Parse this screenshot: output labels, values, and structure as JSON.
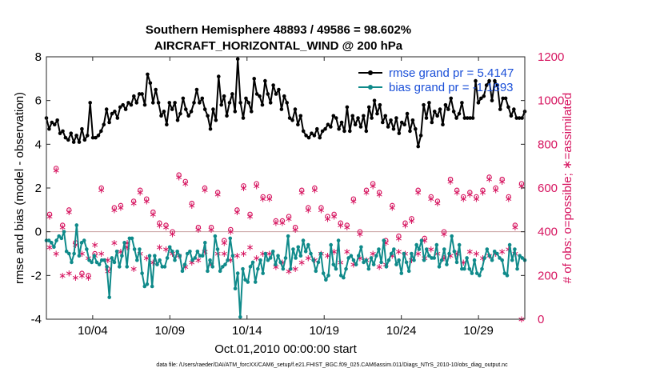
{
  "title_line1": "Southern Hemisphere 48893 / 49586 = 98.602%",
  "title_line2": "AIRCRAFT_HORIZONTAL_WIND @ 200 hPa",
  "footnote": "data file: /Users/raeder/DAI/ATM_forcXX/CAM6_setup/f.e21.FHIST_BGC.f09_025.CAM6assim.011/Diags_NTrS_2010-10/obs_diag_output.nc",
  "colors": {
    "rmse": "#000000",
    "bias": "#0f8a8a",
    "obs": "#d6145f",
    "legend_text": "#1a4fd8",
    "zero_line": "#c8a0a0"
  },
  "chart_data": {
    "type": "line",
    "xlabel": "Oct.01,2010 00:00:00 start",
    "ylabel_left": "rmse and bias (model - observation)",
    "ylabel_right": "# of obs: o=possible; ∗=assimilated",
    "xlim": [
      1,
      32
    ],
    "ylim_left": [
      -4,
      8
    ],
    "ylim_right": [
      0,
      1200
    ],
    "yticks_left": [
      -4,
      -2,
      0,
      2,
      4,
      6,
      8
    ],
    "yticks_right": [
      0,
      200,
      400,
      600,
      800,
      1000,
      1200
    ],
    "xticks": [
      {
        "x": 4,
        "label": "10/04"
      },
      {
        "x": 9,
        "label": "10/09"
      },
      {
        "x": 14,
        "label": "10/14"
      },
      {
        "x": 19,
        "label": "10/19"
      },
      {
        "x": 24,
        "label": "10/24"
      },
      {
        "x": 29,
        "label": "10/29"
      }
    ],
    "grid": false,
    "legend_placement": "top-right",
    "legend": [
      {
        "label": "rmse grand pr = 5.4147",
        "series": "rmse"
      },
      {
        "label": "bias grand pr = -1.1893",
        "series": "bias"
      }
    ],
    "series": [
      {
        "name": "rmse",
        "values": [
          5.2,
          4.7,
          5.0,
          4.9,
          5.1,
          4.5,
          4.6,
          4.3,
          4.2,
          4.5,
          4.1,
          4.4,
          4.1,
          4.7,
          4.2,
          4.4,
          5.9,
          4.3,
          4.3,
          4.4,
          4.6,
          4.9,
          5.6,
          5.0,
          5.4,
          5.5,
          5.2,
          5.7,
          5.8,
          5.6,
          5.9,
          5.8,
          6.2,
          5.9,
          6.3,
          6.3,
          5.8,
          7.2,
          6.8,
          5.9,
          6.5,
          5.9,
          5.3,
          5.5,
          4.9,
          5.9,
          5.6,
          5.9,
          5.1,
          5.4,
          6.1,
          5.6,
          5.3,
          5.5,
          5.9,
          6.5,
          5.9,
          6.1,
          5.6,
          5.3,
          4.7,
          5.6,
          5.1,
          7.1,
          5.8,
          6.2,
          5.3,
          5.9,
          6.3,
          5.5,
          7.9,
          5.9,
          5.2,
          6.1,
          5.9,
          5.5,
          7.0,
          6.3,
          6.2,
          5.8,
          6.9,
          6.3,
          5.9,
          6.7,
          6.3,
          6.5,
          5.6,
          6.2,
          5.9,
          5.2,
          5.1,
          5.6,
          4.9,
          5.3,
          4.6,
          4.4,
          4.3,
          4.5,
          4.4,
          4.7,
          4.3,
          4.6,
          4.7,
          4.9,
          4.8,
          5.3,
          5.2,
          4.7,
          5.0,
          4.6,
          5.7,
          4.6,
          5.3,
          4.9,
          5.2,
          4.8,
          5.3,
          4.6,
          5.7,
          5.2,
          6.0,
          5.4,
          5.8,
          5.0,
          5.3,
          4.8,
          5.1,
          4.7,
          5.2,
          4.5,
          5.0,
          4.9,
          5.4,
          4.6,
          5.1,
          4.7,
          3.9,
          4.4,
          5.8,
          5.2,
          5.9,
          5.0,
          5.5,
          5.3,
          5.6,
          4.9,
          5.8,
          5.6,
          6.1,
          5.5,
          5.2,
          5.4,
          5.9,
          5.2,
          5.2,
          5.2,
          5.2,
          6.9,
          5.9,
          6.1,
          6.2,
          6.7,
          6.9,
          6.0,
          6.9,
          6.7,
          5.6,
          6.1,
          6.1,
          5.7,
          5.3,
          5.6,
          5.2,
          5.2,
          5.2,
          5.5
        ]
      },
      {
        "name": "bias",
        "values": [
          -0.4,
          -0.4,
          -0.5,
          -0.7,
          -0.4,
          -0.2,
          -0.3,
          0.0,
          -0.9,
          -1.0,
          -1.4,
          -1.0,
          0.3,
          -1.1,
          -0.5,
          -0.4,
          -0.8,
          -1.3,
          -1.4,
          -1.1,
          -1.4,
          -1.5,
          -1.3,
          -1.3,
          -1.6,
          -3.0,
          -1.2,
          -1.4,
          -0.9,
          -1.6,
          -1.1,
          -0.5,
          -1.6,
          -0.3,
          -0.3,
          -0.8,
          -1.3,
          -0.8,
          -1.9,
          -2.5,
          -2.4,
          -1.1,
          -2.5,
          -1.1,
          -1.5,
          -1.3,
          -1.6,
          -1.6,
          -1.2,
          -0.7,
          -0.9,
          -1.3,
          -0.9,
          -1.1,
          -1.8,
          -1.5,
          -1.0,
          -0.9,
          -1.3,
          -1.2,
          -0.9,
          -1.1,
          -1.1,
          -0.5,
          -1.8,
          -1.3,
          -1.6,
          -0.2,
          -0.8,
          -1.8,
          -1.6,
          -1.5,
          -1.3,
          -0.3,
          -1.1,
          -2.6,
          -1.9,
          -3.9,
          -1.7,
          -2.2,
          -2.3,
          -1.6,
          -1.4,
          -2.3,
          -1.7,
          -1.3,
          -1.9,
          -1.0,
          -1.3,
          -1.2,
          -0.9,
          -1.5,
          -1.1,
          -1.4,
          -1.7,
          -1.2,
          -0.2,
          -1.7,
          -0.8,
          -1.2,
          -0.7,
          -1.1,
          -0.4,
          -0.9,
          -0.6,
          -1.0,
          -1.3,
          -1.8,
          -1.4,
          -1.0,
          -1.9,
          -2.2,
          -2.0,
          -0.6,
          -1.5,
          -1.7,
          -0.4,
          -2.0,
          -2.1,
          -1.7,
          -1.2,
          -1.1,
          -1.3,
          -1.5,
          -1.1,
          -0.7,
          -1.4,
          -1.3,
          -1.7,
          -1.2,
          -1.5,
          -1.1,
          -0.8,
          -1.4,
          -0.4,
          -1.6,
          -1.3,
          -1.0,
          -0.8,
          -1.5,
          -1.3,
          -1.9,
          -1.0,
          -1.4,
          -1.8,
          -1.0,
          -1.3,
          -0.6,
          -0.8,
          -0.4,
          -1.3,
          -0.8,
          -1.1,
          -1.2,
          -1.2,
          -0.6,
          -1.6,
          -1.3,
          -0.8,
          -1.5,
          -1.0,
          -0.2,
          -0.9,
          -1.4,
          -0.6,
          -1.7,
          -1.7,
          -1.2,
          -1.7,
          -1.9,
          -1.3,
          -1.9,
          -2.0,
          -1.7,
          -1.2,
          -0.8,
          -1.1,
          -1.3,
          -0.9,
          -1.0,
          -1.2,
          -1.3,
          -1.9,
          -2.0,
          -0.6,
          -1.3,
          -0.8,
          -1.7,
          -1.1,
          -1.2,
          -1.3
        ]
      },
      {
        "name": "obs possible",
        "axis": "right",
        "values": [
          480,
          690,
          430,
          500,
          350,
          210,
          200,
          300,
          600,
          230,
          510,
          520,
          340,
          540,
          590,
          550,
          490,
          440,
          430,
          400,
          660,
          630,
          530,
          420,
          600,
          420,
          580,
          360,
          410,
          500,
          610,
          480,
          620,
          560,
          560,
          450,
          450,
          470,
          420,
          590,
          510,
          600,
          510,
          470,
          480,
          440,
          430,
          550,
          400,
          590,
          620,
          580,
          360,
          520,
          380,
          440,
          460,
          590,
          370,
          560,
          540,
          400,
          640,
          590,
          560,
          580,
          560,
          590,
          650,
          600,
          640,
          560,
          430,
          620
        ]
      },
      {
        "name": "obs assimilated",
        "axis": "right",
        "values": [
          470,
          680,
          420,
          490,
          340,
          200,
          190,
          290,
          590,
          220,
          500,
          510,
          330,
          530,
          580,
          540,
          480,
          430,
          420,
          390,
          650,
          620,
          520,
          410,
          590,
          410,
          570,
          350,
          400,
          490,
          600,
          470,
          610,
          550,
          550,
          440,
          440,
          460,
          410,
          580,
          500,
          590,
          500,
          460,
          470,
          430,
          420,
          540,
          390,
          580,
          610,
          570,
          350,
          510,
          370,
          430,
          450,
          580,
          360,
          550,
          530,
          390,
          630,
          580,
          550,
          570,
          550,
          580,
          640,
          590,
          630,
          550,
          420,
          610
        ]
      },
      {
        "name": "obs assimilated (lower)",
        "axis": "right",
        "values": [
          330,
          300,
          200,
          210,
          190,
          300,
          280,
          340,
          300,
          270,
          350,
          310,
          350,
          230,
          300,
          280,
          260,
          330,
          320,
          300,
          290,
          240,
          260,
          270,
          310,
          250,
          300,
          300,
          270,
          290,
          300,
          330,
          280,
          300,
          300,
          240,
          260,
          220,
          230,
          260,
          280,
          270,
          300,
          290,
          310,
          260,
          310,
          250,
          280,
          270,
          300,
          240,
          250,
          290,
          310,
          300,
          270,
          300,
          280,
          320,
          300,
          280,
          290,
          300,
          260,
          310,
          300,
          280,
          290,
          300,
          310,
          320,
          300,
          0
        ]
      }
    ]
  }
}
